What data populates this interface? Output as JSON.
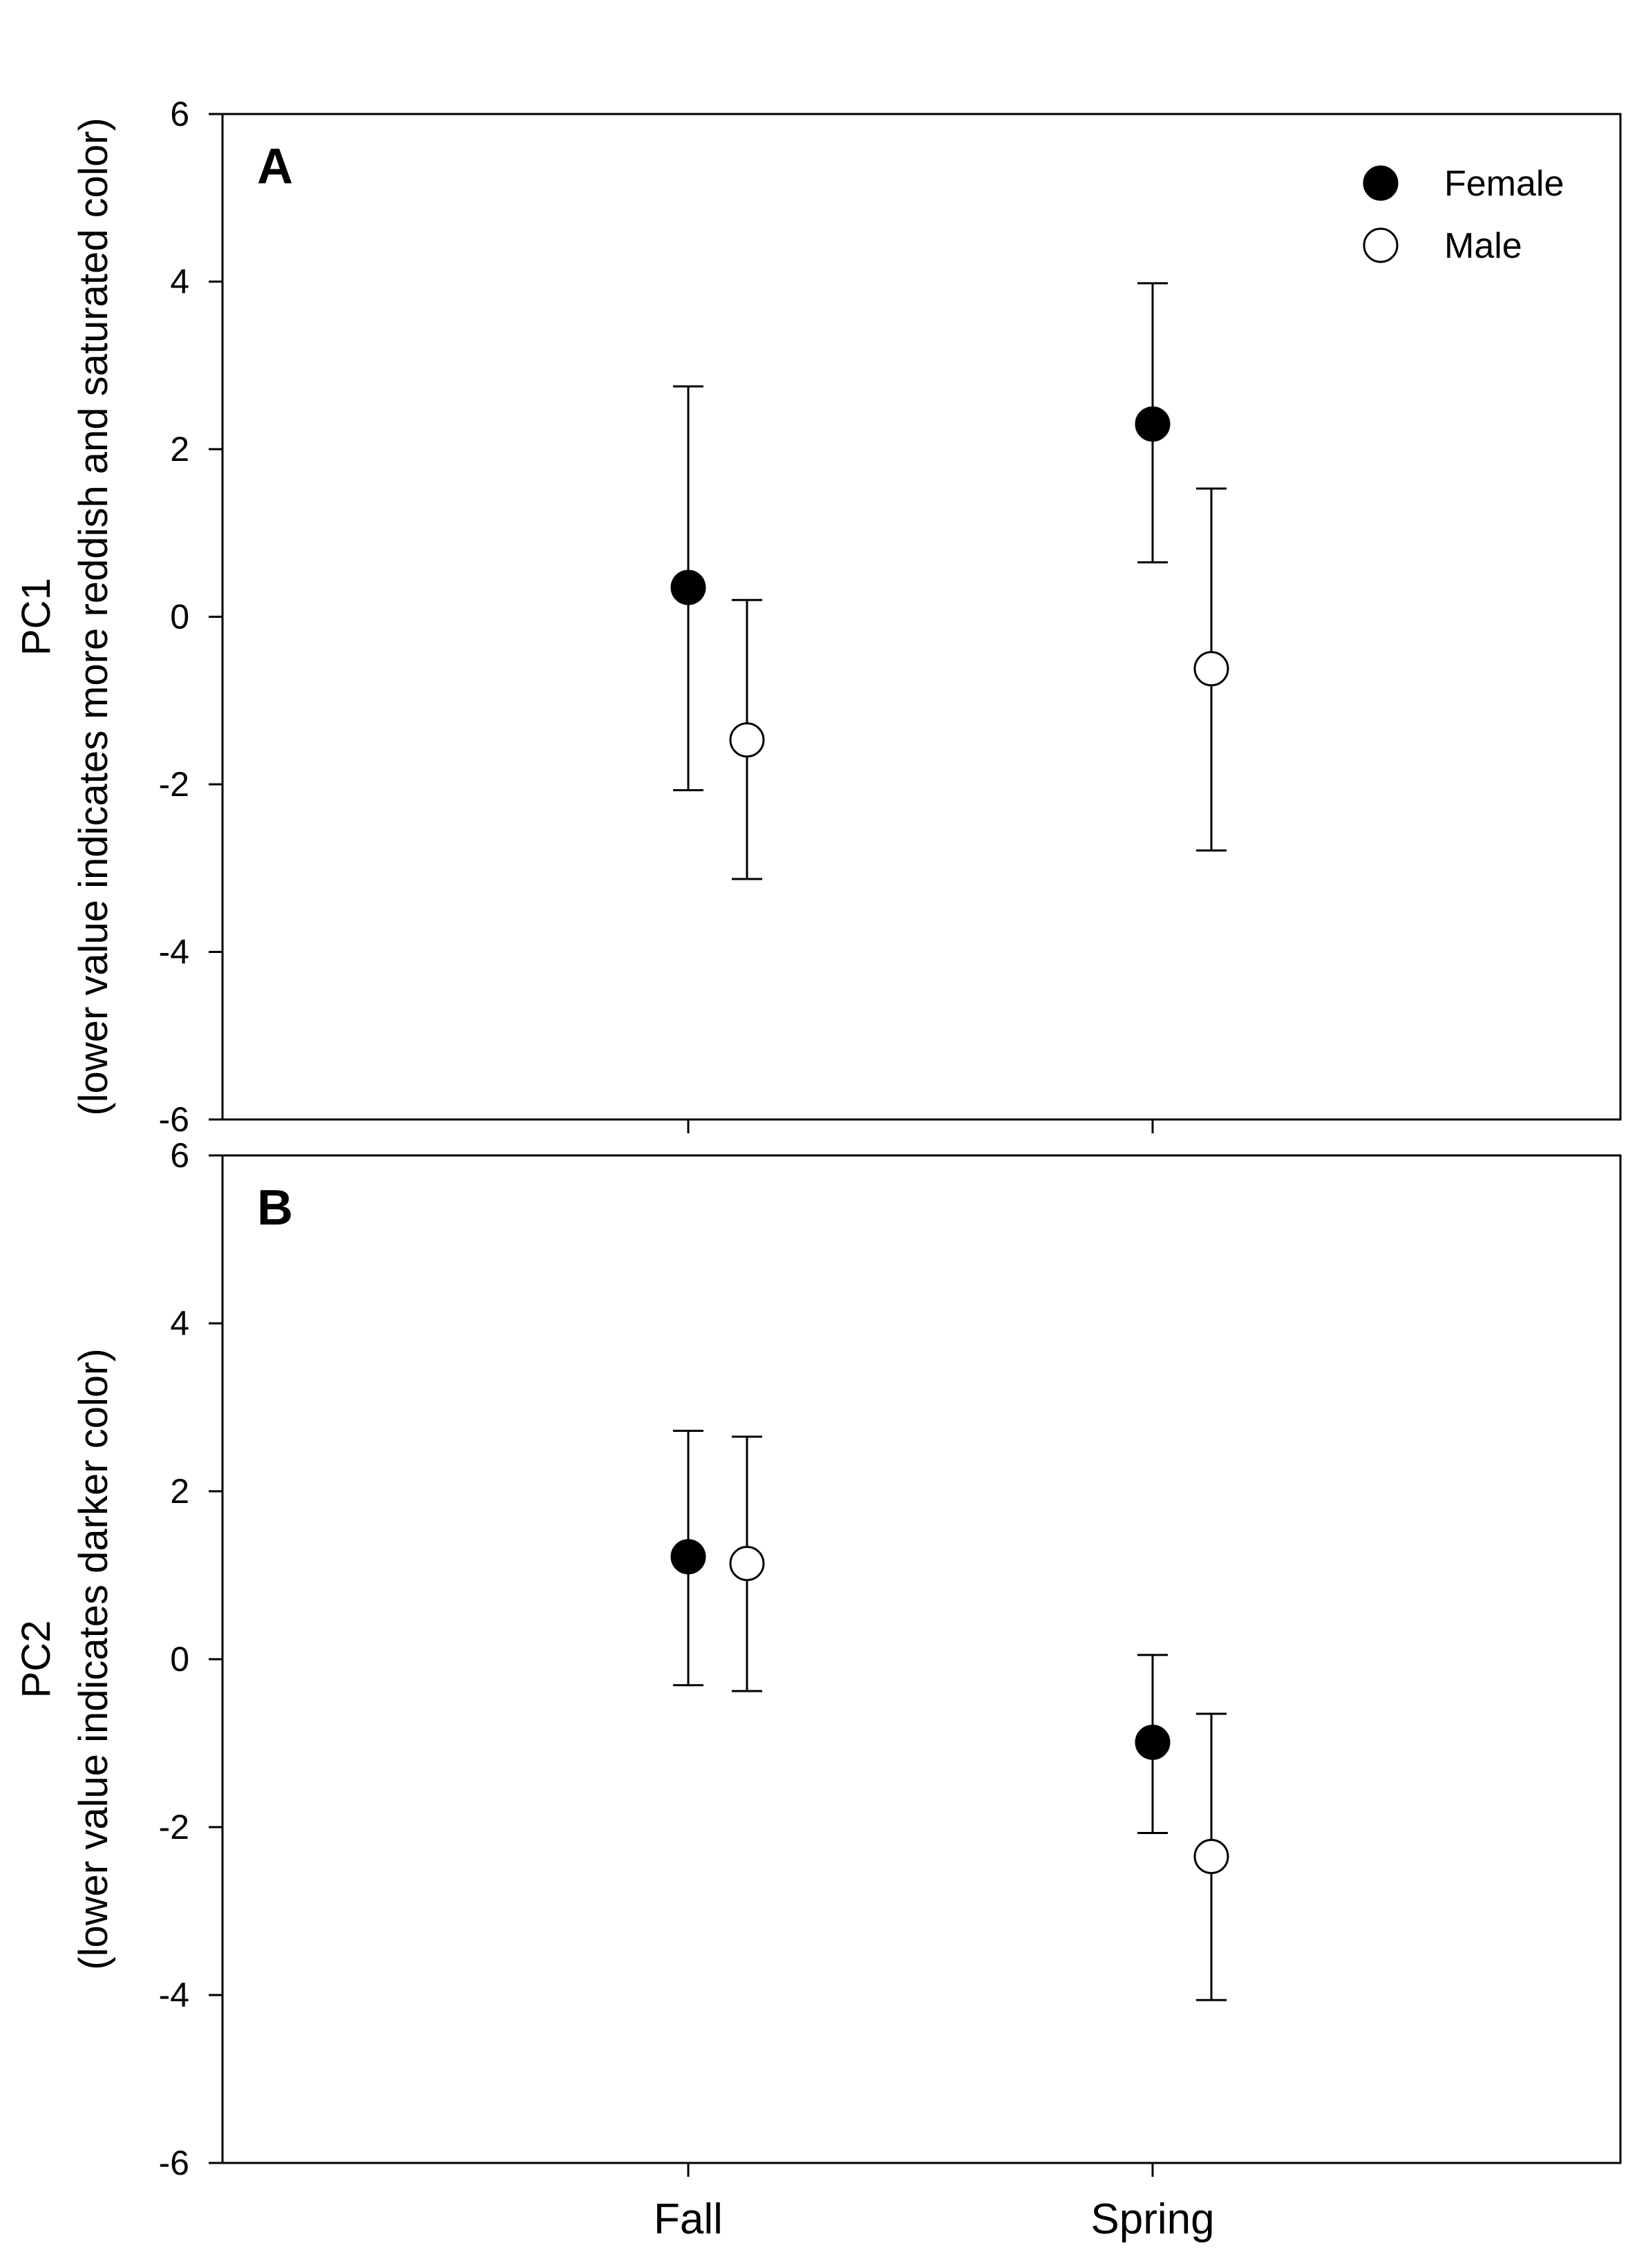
{
  "chart_data": [
    {
      "type": "scatter",
      "panel_label": "A",
      "xlabel": "",
      "ylabel": "PC1",
      "ylabel_sub": "(lower value indicates more reddish and saturated color)",
      "categories": [
        "Fall",
        "Spring"
      ],
      "ylim": [
        -6,
        6
      ],
      "yticks": [
        -6,
        -4,
        -2,
        0,
        2,
        4,
        6
      ],
      "grid": false,
      "legend": {
        "placement": "top-right",
        "entries": [
          "Female",
          "Male"
        ]
      },
      "series": [
        {
          "name": "Female",
          "marker": "filled-circle",
          "color": "#000000",
          "values": [
            0.35,
            2.3
          ],
          "err_low": [
            -2.07,
            0.65
          ],
          "err_high": [
            2.75,
            3.98
          ]
        },
        {
          "name": "Male",
          "marker": "open-circle",
          "color": "#ffffff",
          "values": [
            -1.47,
            -0.62
          ],
          "err_low": [
            -3.13,
            -2.79
          ],
          "err_high": [
            0.2,
            1.53
          ]
        }
      ]
    },
    {
      "type": "scatter",
      "panel_label": "B",
      "xlabel": "",
      "ylabel": "PC2",
      "ylabel_sub": "(lower value indicates darker color)",
      "categories": [
        "Fall",
        "Spring"
      ],
      "ylim": [
        -6,
        6
      ],
      "yticks": [
        -6,
        -4,
        -2,
        0,
        2,
        4,
        6
      ],
      "grid": false,
      "series": [
        {
          "name": "Female",
          "marker": "filled-circle",
          "color": "#000000",
          "values": [
            1.22,
            -0.99
          ],
          "err_low": [
            -0.31,
            -2.07
          ],
          "err_high": [
            2.72,
            0.05
          ]
        },
        {
          "name": "Male",
          "marker": "open-circle",
          "color": "#ffffff",
          "values": [
            1.14,
            -2.35
          ],
          "err_low": [
            -0.38,
            -4.06
          ],
          "err_high": [
            2.65,
            -0.65
          ]
        }
      ]
    }
  ]
}
